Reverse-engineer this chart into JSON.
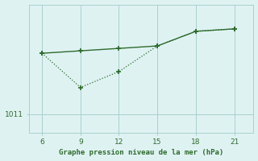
{
  "xlabel": "Graphe pression niveau de la mer (hPa)",
  "bg_color": "#dff2f2",
  "line_color": "#2d6b2d",
  "grid_color": "#aacfcf",
  "x_ticks": [
    6,
    9,
    12,
    15,
    18,
    21
  ],
  "y_tick_label": 1011,
  "solid_x": [
    6,
    9,
    12,
    15,
    18,
    21
  ],
  "solid_y": [
    1016.0,
    1016.2,
    1016.4,
    1016.6,
    1017.8,
    1018.0
  ],
  "dot_x": [
    6,
    9,
    12,
    15,
    18,
    21
  ],
  "dot_y": [
    1016.0,
    1013.2,
    1014.5,
    1016.6,
    1017.8,
    1018.0
  ],
  "ylim": [
    1009.5,
    1020.0
  ],
  "xlim": [
    5.0,
    22.5
  ]
}
